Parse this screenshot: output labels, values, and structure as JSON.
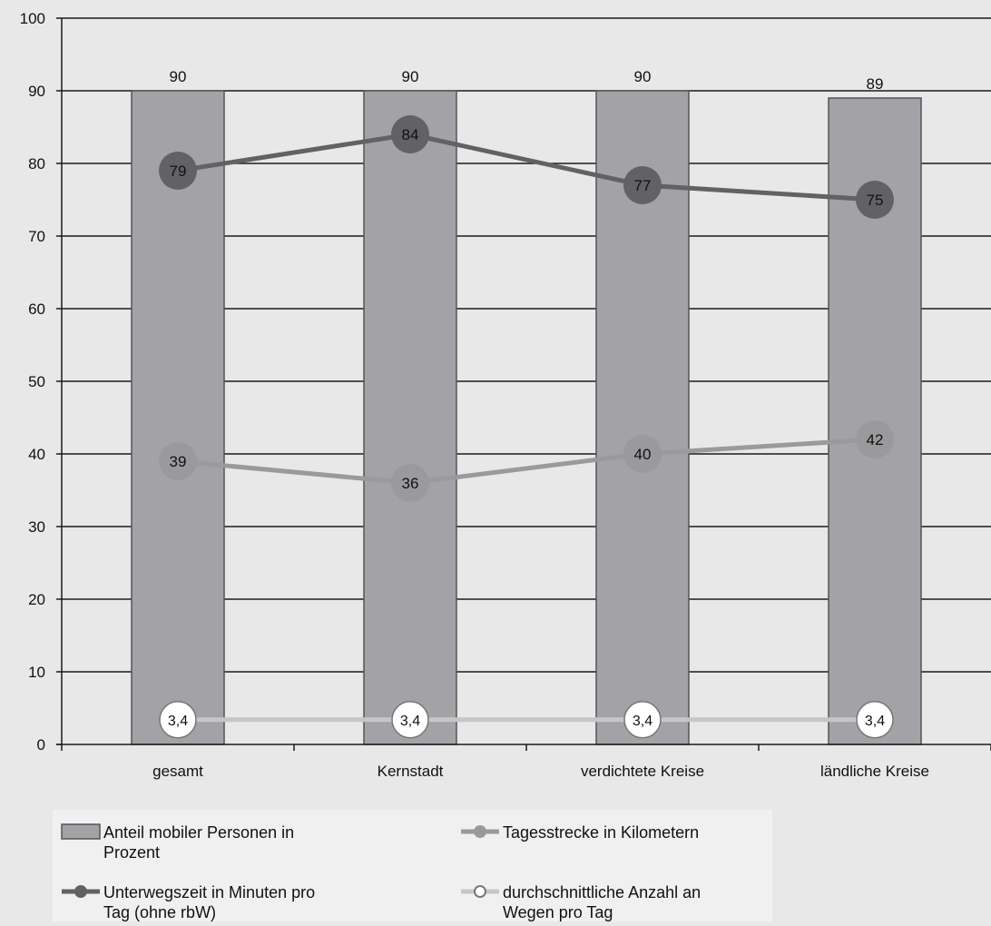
{
  "chart_data": {
    "type": "bar",
    "categories": [
      "gesamt",
      "Kernstadt",
      "verdichtete Kreise",
      "ländliche Kreise"
    ],
    "series": [
      {
        "name": "Anteil mobiler Personen in Prozent",
        "kind": "bar",
        "values": [
          90,
          90,
          90,
          89
        ],
        "labels": [
          "90",
          "90",
          "90",
          "89"
        ],
        "color": "#a3a3a7"
      },
      {
        "name": "Unterwegszeit in Minuten pro Tag (ohne rbW)",
        "kind": "line",
        "values": [
          79,
          84,
          77,
          75
        ],
        "labels": [
          "79",
          "84",
          "77",
          "75"
        ],
        "color": "#626266"
      },
      {
        "name": "Tagesstrecke in Kilometern",
        "kind": "line",
        "values": [
          39,
          36,
          40,
          42
        ],
        "labels": [
          "39",
          "36",
          "40",
          "42"
        ],
        "color": "#9a9a9d"
      },
      {
        "name": "durchschnittliche Anzahl an Wegen pro Tag",
        "kind": "line",
        "values": [
          3.4,
          3.4,
          3.4,
          3.4
        ],
        "labels": [
          "3,4",
          "3,4",
          "3,4",
          "3,4"
        ],
        "color": "#c6c6c6",
        "marker": "hollow"
      }
    ],
    "y_ticks": [
      "0",
      "10",
      "20",
      "30",
      "40",
      "50",
      "60",
      "70",
      "80",
      "90",
      "100"
    ],
    "ylim": [
      0,
      100
    ],
    "grid": true,
    "legend": {
      "position": "bottom",
      "entries": [
        [
          "Anteil mobiler Personen in",
          "Prozent"
        ],
        [
          "Tagesstrecke in Kilometern"
        ],
        [
          "Unterwegszeit in Minuten pro",
          "Tag (ohne rbW)"
        ],
        [
          "durchschnittliche Anzahl an",
          "Wegen pro Tag"
        ]
      ]
    }
  }
}
